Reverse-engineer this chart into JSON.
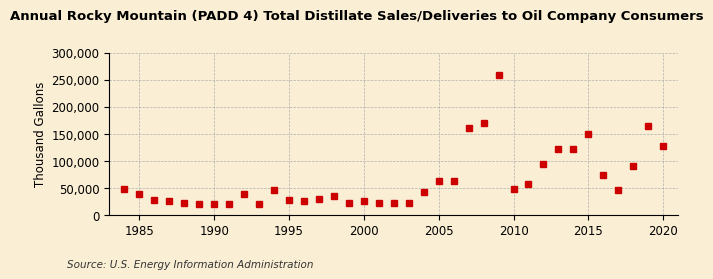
{
  "title": "Annual Rocky Mountain (PADD 4) Total Distillate Sales/Deliveries to Oil Company Consumers",
  "ylabel": "Thousand Gallons",
  "source": "Source: U.S. Energy Information Administration",
  "background_color": "#faefd4",
  "marker_color": "#cc0000",
  "years": [
    1984,
    1985,
    1986,
    1987,
    1988,
    1989,
    1990,
    1991,
    1992,
    1993,
    1994,
    1995,
    1996,
    1997,
    1998,
    1999,
    2000,
    2001,
    2002,
    2003,
    2004,
    2005,
    2006,
    2007,
    2008,
    2009,
    2010,
    2011,
    2012,
    2013,
    2014,
    2015,
    2016,
    2017,
    2018,
    2019,
    2020
  ],
  "values": [
    47000,
    38000,
    28000,
    25000,
    22000,
    20000,
    20000,
    20000,
    38000,
    20000,
    46000,
    27000,
    25000,
    30000,
    35000,
    22000,
    25000,
    22000,
    22000,
    22000,
    42000,
    62000,
    62000,
    160000,
    170000,
    258000,
    47000,
    57000,
    93000,
    121000,
    122000,
    149000,
    73000,
    46000,
    90000,
    165000,
    128000
  ],
  "xlim": [
    1983,
    2021
  ],
  "ylim": [
    0,
    300000
  ],
  "yticks": [
    0,
    50000,
    100000,
    150000,
    200000,
    250000,
    300000
  ],
  "xticks": [
    1985,
    1990,
    1995,
    2000,
    2005,
    2010,
    2015,
    2020
  ],
  "grid_color": "#aaaaaa",
  "title_fontsize": 9.5,
  "axis_fontsize": 8.5,
  "source_fontsize": 7.5,
  "marker_size": 4
}
